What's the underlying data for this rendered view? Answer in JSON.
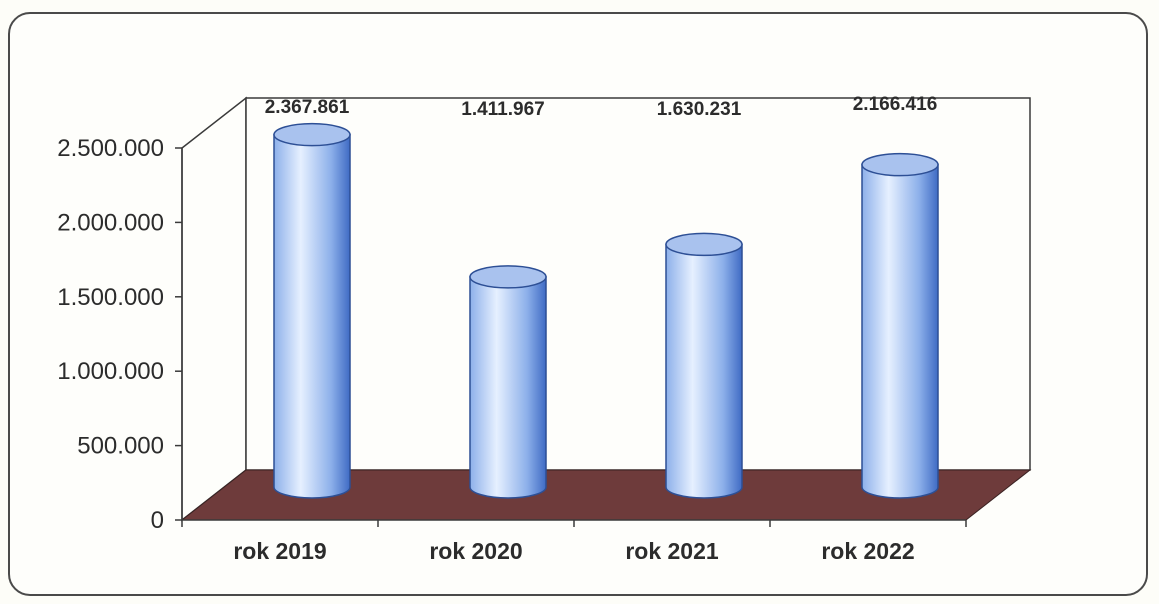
{
  "chart_data": {
    "type": "bar",
    "style": "3d-cylinder",
    "categories": [
      "rok 2019",
      "rok 2020",
      "rok 2021",
      "rok 2022"
    ],
    "values": [
      2367861,
      1411967,
      1630231,
      2166416
    ],
    "data_labels": [
      "2.367.861",
      "1.411.967",
      "1.630.231",
      "2.166.416"
    ],
    "y_ticks": [
      {
        "value": 0,
        "label": "0"
      },
      {
        "value": 500000,
        "label": "500.000"
      },
      {
        "value": 1000000,
        "label": "1.000.000"
      },
      {
        "value": 1500000,
        "label": "1.500.000"
      },
      {
        "value": 2000000,
        "label": "2.000.000"
      },
      {
        "value": 2500000,
        "label": "2.500.000"
      }
    ],
    "ylim": [
      0,
      2500000
    ],
    "grid": false,
    "legend": "none",
    "title": "",
    "xlabel": "",
    "ylabel": "",
    "colors": {
      "bar_light": "#e6f0ff",
      "bar_mid": "#8db0ea",
      "bar_dark": "#3f6bc4",
      "bar_top": "#a9c2ee",
      "floor": "#6e3b3b",
      "walls": "#fefefb",
      "axis": "#3a3a3a"
    }
  }
}
